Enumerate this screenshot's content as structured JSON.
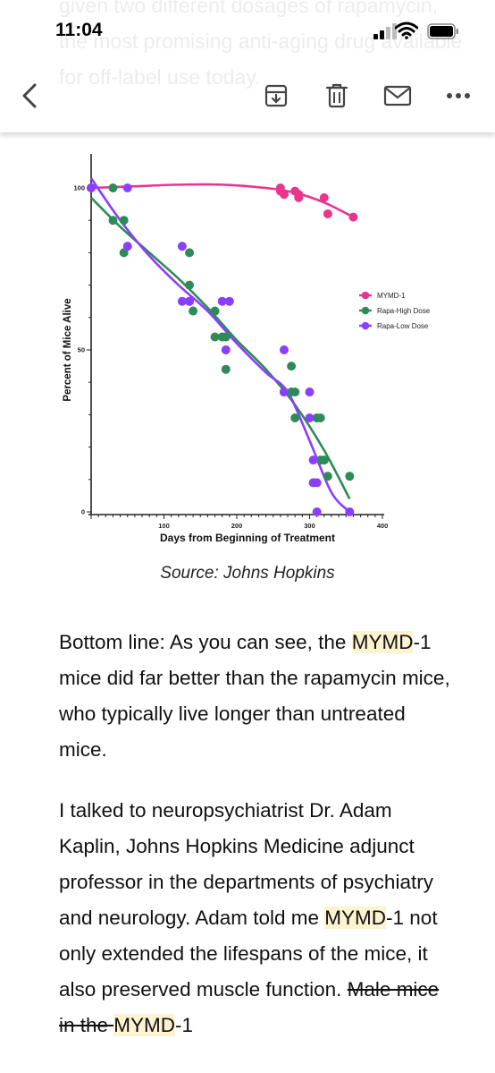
{
  "status_bar": {
    "time": "11:04"
  },
  "background_text": "given two different dosages of rapamycin, the most promising anti-aging drug available for off-label use today.",
  "toolbar": {
    "back_icon": "chevron-left-icon",
    "archive_icon": "archive-icon",
    "delete_icon": "trash-icon",
    "mail_icon": "mail-icon",
    "more_icon": "more-icon"
  },
  "chart_data": {
    "type": "scatter",
    "xlabel": "Days from Beginning of Treatment",
    "ylabel": "Percent of Mice Alive",
    "xlim": [
      0,
      400
    ],
    "ylim": [
      0,
      100
    ],
    "x_ticks": [
      "100",
      "200",
      "300",
      "400"
    ],
    "y_ticks": [
      "100",
      "50",
      "0"
    ],
    "legend_position": "right",
    "series": [
      {
        "name": "MYMD-1",
        "color": "#e8368f",
        "points": [
          [
            0,
            100
          ],
          [
            260,
            100
          ],
          [
            260,
            99
          ],
          [
            265,
            98
          ],
          [
            280,
            99
          ],
          [
            285,
            98
          ],
          [
            285,
            97
          ],
          [
            320,
            97
          ],
          [
            325,
            92
          ],
          [
            360,
            91
          ]
        ],
        "fit": [
          [
            0,
            100
          ],
          [
            60,
            100.5
          ],
          [
            120,
            101
          ],
          [
            180,
            101
          ],
          [
            240,
            100
          ],
          [
            280,
            98.5
          ],
          [
            320,
            95.5
          ],
          [
            360,
            91
          ]
        ]
      },
      {
        "name": "Rapa-High Dose",
        "color": "#2e8b57",
        "points": [
          [
            30,
            100
          ],
          [
            30,
            90
          ],
          [
            45,
            90
          ],
          [
            45,
            80
          ],
          [
            135,
            80
          ],
          [
            135,
            70
          ],
          [
            140,
            62
          ],
          [
            170,
            62
          ],
          [
            170,
            54
          ],
          [
            180,
            54
          ],
          [
            185,
            54
          ],
          [
            185,
            44
          ],
          [
            265,
            37
          ],
          [
            275,
            45
          ],
          [
            275,
            37
          ],
          [
            280,
            37
          ],
          [
            280,
            29
          ],
          [
            310,
            29
          ],
          [
            315,
            29
          ],
          [
            315,
            16
          ],
          [
            320,
            16
          ],
          [
            320,
            16
          ],
          [
            325,
            11
          ],
          [
            355,
            11
          ]
        ],
        "fit": [
          [
            0,
            97
          ],
          [
            40,
            88
          ],
          [
            80,
            80
          ],
          [
            120,
            72
          ],
          [
            160,
            63
          ],
          [
            200,
            53
          ],
          [
            240,
            44
          ],
          [
            280,
            33
          ],
          [
            320,
            19
          ],
          [
            355,
            4
          ]
        ]
      },
      {
        "name": "Rapa-Low Dose",
        "color": "#8a3ffc",
        "points": [
          [
            0,
            100
          ],
          [
            50,
            100
          ],
          [
            50,
            82
          ],
          [
            125,
            82
          ],
          [
            125,
            65
          ],
          [
            135,
            65
          ],
          [
            135,
            65
          ],
          [
            180,
            65
          ],
          [
            185,
            50
          ],
          [
            190,
            65
          ],
          [
            265,
            50
          ],
          [
            265,
            37
          ],
          [
            300,
            37
          ],
          [
            300,
            29
          ],
          [
            305,
            16
          ],
          [
            305,
            9
          ],
          [
            310,
            9
          ],
          [
            310,
            0
          ],
          [
            355,
            0
          ]
        ],
        "fit": [
          [
            0,
            103
          ],
          [
            40,
            90
          ],
          [
            80,
            79
          ],
          [
            120,
            70
          ],
          [
            160,
            62
          ],
          [
            200,
            52
          ],
          [
            240,
            43
          ],
          [
            270,
            37
          ],
          [
            300,
            22
          ],
          [
            330,
            6
          ],
          [
            355,
            0
          ]
        ]
      }
    ]
  },
  "caption": "Source: Johns Hopkins",
  "paragraph1": {
    "before": "Bottom line: As you can see, the ",
    "highlight": "MYMD",
    "after": "-1 mice did far better than the rapamycin mice, who typically live longer than untreated mice."
  },
  "paragraph2": {
    "before": "I talked to neuropsychiatrist Dr. Adam Kaplin, Johns Hopkins Medicine adjunct professor in the departments of psychiatry and neurology. Adam told me ",
    "highlight1": "MYMD",
    "middle": "-1 not only extended the lifespans of the mice, it also preserved muscle function. ",
    "strike": "Male mice in the ",
    "highlight2": "MYMD",
    "end": "-1"
  }
}
